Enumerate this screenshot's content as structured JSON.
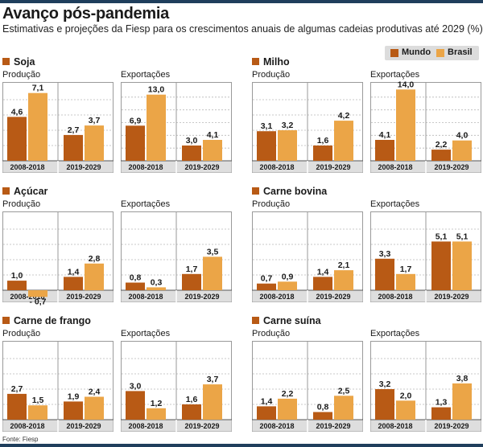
{
  "title": "Avanço pós-pandemia",
  "subtitle": "Estimativas e projeções da Fiesp para os crescimentos anuais de algumas cadeias produtivas até 2029 (%)",
  "source": "Fonte: Fiesp",
  "colors": {
    "mundo": "#b85a15",
    "brasil": "#eba547"
  },
  "chart_data": {
    "type": "bar",
    "series_names": [
      "Mundo",
      "Brasil"
    ],
    "categories": [
      "2008-2018",
      "2019-2029"
    ],
    "subcharts": [
      "Produção",
      "Exportações"
    ],
    "panels": [
      {
        "name": "Soja",
        "producao": {
          "mundo": [
            4.6,
            2.7
          ],
          "brasil": [
            7.1,
            3.7
          ]
        },
        "exportacoes": {
          "mundo": [
            6.9,
            3.0
          ],
          "brasil": [
            13.0,
            4.1
          ]
        }
      },
      {
        "name": "Milho",
        "producao": {
          "mundo": [
            3.1,
            1.6
          ],
          "brasil": [
            3.2,
            4.2
          ]
        },
        "exportacoes": {
          "mundo": [
            4.1,
            2.2
          ],
          "brasil": [
            14.0,
            4.0
          ]
        }
      },
      {
        "name": "Açúcar",
        "producao": {
          "mundo": [
            1.0,
            1.4
          ],
          "brasil": [
            -0.7,
            2.8
          ]
        },
        "exportacoes": {
          "mundo": [
            0.8,
            1.7
          ],
          "brasil": [
            0.3,
            3.5
          ]
        }
      },
      {
        "name": "Carne bovina",
        "producao": {
          "mundo": [
            0.7,
            1.4
          ],
          "brasil": [
            0.9,
            2.1
          ]
        },
        "exportacoes": {
          "mundo": [
            3.3,
            5.1
          ],
          "brasil": [
            1.7,
            5.1
          ]
        }
      },
      {
        "name": "Carne de frango",
        "producao": {
          "mundo": [
            2.7,
            1.9
          ],
          "brasil": [
            1.5,
            2.4
          ]
        },
        "exportacoes": {
          "mundo": [
            3.0,
            1.6
          ],
          "brasil": [
            1.2,
            3.7
          ]
        }
      },
      {
        "name": "Carne suína",
        "producao": {
          "mundo": [
            1.4,
            0.8
          ],
          "brasil": [
            2.2,
            2.5
          ]
        },
        "exportacoes": {
          "mundo": [
            3.2,
            1.3
          ],
          "brasil": [
            2.0,
            3.8
          ]
        }
      }
    ],
    "grid": true,
    "legend_position": "top-right"
  }
}
